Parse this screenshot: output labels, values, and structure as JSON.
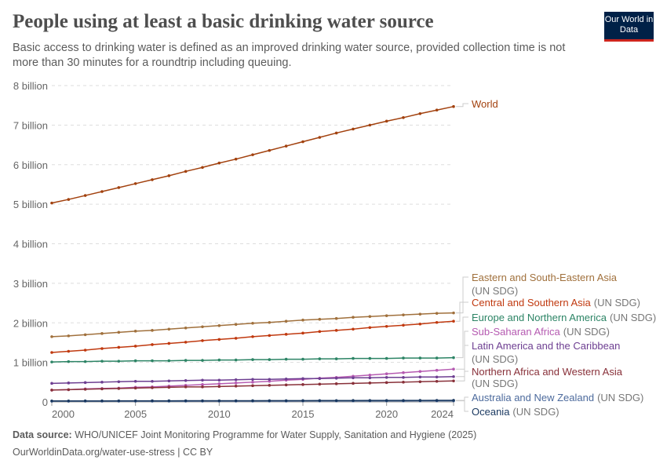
{
  "title": "People using at least a basic drinking water source",
  "subtitle": "Basic access to drinking water is defined as an improved drinking water source, provided collection time is not more than 30 minutes for a roundtrip including queuing.",
  "logo": "Our World in Data",
  "footer": {
    "source_label": "Data source:",
    "source_text": "WHO/UNICEF Joint Monitoring Programme for Water Supply, Sanitation and Hygiene (2025)",
    "url": "OurWorldinData.org/water-use-stress | CC BY"
  },
  "chart_data": {
    "type": "line",
    "title": "People using at least a basic drinking water source",
    "x": [
      2000,
      2001,
      2002,
      2003,
      2004,
      2005,
      2006,
      2007,
      2008,
      2009,
      2010,
      2011,
      2012,
      2013,
      2014,
      2015,
      2016,
      2017,
      2018,
      2019,
      2020,
      2021,
      2022,
      2023,
      2024
    ],
    "xlim": [
      2000,
      2024
    ],
    "ylim": [
      0,
      8000000000
    ],
    "x_ticks": [
      {
        "value": 2000,
        "label": "2000"
      },
      {
        "value": 2005,
        "label": "2005"
      },
      {
        "value": 2010,
        "label": "2010"
      },
      {
        "value": 2015,
        "label": "2015"
      },
      {
        "value": 2020,
        "label": "2020"
      },
      {
        "value": 2024,
        "label": "2024"
      }
    ],
    "y_ticks": [
      {
        "value": 0,
        "label": "0"
      },
      {
        "value": 1000000000.0,
        "label": "1 billion"
      },
      {
        "value": 2000000000.0,
        "label": "2 billion"
      },
      {
        "value": 3000000000.0,
        "label": "3 billion"
      },
      {
        "value": 4000000000.0,
        "label": "4 billion"
      },
      {
        "value": 5000000000.0,
        "label": "5 billion"
      },
      {
        "value": 6000000000.0,
        "label": "6 billion"
      },
      {
        "value": 7000000000.0,
        "label": "7 billion"
      },
      {
        "value": 8000000000.0,
        "label": "8 billion"
      }
    ],
    "grid": "horizontal dashed",
    "legend": "right, inline labels",
    "series": [
      {
        "name": "World",
        "suffix": "",
        "color": "#a2410e",
        "values": [
          5.03,
          5.12,
          5.22,
          5.32,
          5.42,
          5.52,
          5.62,
          5.72,
          5.83,
          5.93,
          6.04,
          6.14,
          6.25,
          6.36,
          6.47,
          6.58,
          6.69,
          6.8,
          6.9,
          7.0,
          7.1,
          7.19,
          7.29,
          7.38,
          7.47
        ],
        "unit": "billion"
      },
      {
        "name": "Eastern and South-Eastern Asia",
        "suffix": "(UN SDG)",
        "color": "#a0703c",
        "values": [
          1.65,
          1.67,
          1.7,
          1.73,
          1.76,
          1.79,
          1.81,
          1.84,
          1.87,
          1.9,
          1.93,
          1.96,
          1.99,
          2.01,
          2.04,
          2.07,
          2.09,
          2.11,
          2.14,
          2.16,
          2.18,
          2.2,
          2.22,
          2.24,
          2.25
        ],
        "unit": "billion"
      },
      {
        "name": "Central and Southern Asia",
        "suffix": "(UN SDG)",
        "color": "#c0390f",
        "values": [
          1.25,
          1.28,
          1.31,
          1.35,
          1.38,
          1.41,
          1.45,
          1.48,
          1.51,
          1.55,
          1.58,
          1.61,
          1.65,
          1.68,
          1.71,
          1.74,
          1.78,
          1.81,
          1.84,
          1.88,
          1.91,
          1.94,
          1.97,
          2.01,
          2.04
        ],
        "unit": "billion"
      },
      {
        "name": "Europe and Northern America",
        "suffix": "(UN SDG)",
        "color": "#2c8465",
        "values": [
          1.01,
          1.02,
          1.02,
          1.03,
          1.03,
          1.04,
          1.04,
          1.04,
          1.05,
          1.05,
          1.06,
          1.06,
          1.07,
          1.07,
          1.08,
          1.08,
          1.09,
          1.09,
          1.1,
          1.1,
          1.1,
          1.11,
          1.11,
          1.11,
          1.12
        ],
        "unit": "billion"
      },
      {
        "name": "Sub-Saharan Africa",
        "suffix": "(UN SDG)",
        "color": "#b55ab1",
        "values": [
          0.3,
          0.31,
          0.33,
          0.34,
          0.35,
          0.37,
          0.38,
          0.4,
          0.42,
          0.44,
          0.46,
          0.48,
          0.5,
          0.52,
          0.55,
          0.57,
          0.6,
          0.62,
          0.65,
          0.68,
          0.71,
          0.74,
          0.77,
          0.8,
          0.83
        ],
        "unit": "billion"
      },
      {
        "name": "Latin America and the Caribbean",
        "suffix": "(UN SDG)",
        "color": "#6d3e91",
        "values": [
          0.47,
          0.48,
          0.49,
          0.5,
          0.51,
          0.52,
          0.52,
          0.53,
          0.54,
          0.55,
          0.55,
          0.56,
          0.57,
          0.57,
          0.58,
          0.59,
          0.59,
          0.6,
          0.61,
          0.61,
          0.62,
          0.62,
          0.63,
          0.63,
          0.64
        ],
        "unit": "billion"
      },
      {
        "name": "Northern Africa and Western Asia",
        "suffix": "(UN SDG)",
        "color": "#883039",
        "values": [
          0.3,
          0.31,
          0.32,
          0.33,
          0.34,
          0.35,
          0.36,
          0.37,
          0.38,
          0.38,
          0.39,
          0.4,
          0.41,
          0.42,
          0.43,
          0.44,
          0.45,
          0.46,
          0.47,
          0.48,
          0.49,
          0.5,
          0.51,
          0.52,
          0.53
        ],
        "unit": "billion"
      },
      {
        "name": "Australia and New Zealand",
        "suffix": "(UN SDG)",
        "color": "#4c6a9c",
        "values": [
          0.019,
          0.019,
          0.02,
          0.02,
          0.02,
          0.02,
          0.021,
          0.021,
          0.021,
          0.022,
          0.022,
          0.022,
          0.023,
          0.023,
          0.023,
          0.024,
          0.024,
          0.025,
          0.025,
          0.026,
          0.026,
          0.026,
          0.027,
          0.027,
          0.028
        ],
        "unit": "billion"
      },
      {
        "name": "Oceania",
        "suffix": "(UN SDG)",
        "color": "#18375f",
        "values": [
          0.025,
          0.025,
          0.026,
          0.026,
          0.027,
          0.027,
          0.028,
          0.028,
          0.029,
          0.029,
          0.03,
          0.03,
          0.031,
          0.032,
          0.032,
          0.033,
          0.034,
          0.034,
          0.035,
          0.036,
          0.036,
          0.037,
          0.038,
          0.039,
          0.04
        ],
        "unit": "billion"
      }
    ]
  }
}
